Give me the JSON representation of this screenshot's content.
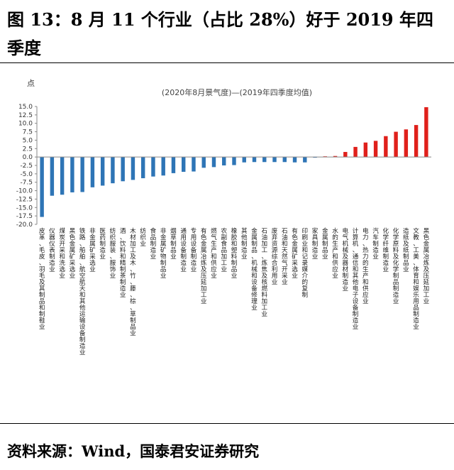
{
  "header": {
    "title": "图 13：8 月 11 个行业（占比 28%）好于 2019 年四季度"
  },
  "footer": {
    "source": "资料来源：Wind，国泰君安证券研究"
  },
  "chart_data": {
    "type": "bar",
    "title": "(2020年8月景气度)—(2019年四季度均值)",
    "ylabel": "点",
    "xlabel": "",
    "ylim": [
      -20,
      15
    ],
    "yticks": [
      15.0,
      12.5,
      10.0,
      7.5,
      5.0,
      2.5,
      0.0,
      -2.5,
      -5.0,
      -7.5,
      -10.0,
      -12.5,
      -15.0,
      -17.5,
      -20.0
    ],
    "grid": false,
    "colors": {
      "negative": "#2E75B6",
      "positive": "#E0201B"
    },
    "categories": [
      "皮革、毛皮、羽毛及其制品和制鞋业",
      "仪器仪表制造业",
      "煤炭开采和洗选业",
      "黑色金属矿采选业",
      "铁路、船舶、航空航天和其他运输设备制造业",
      "非金属矿采选业",
      "医药制造业",
      "纺织服装、服饰业",
      "酒、饮料和精制茶制造业",
      "木材加工及木、竹、藤、棕、草制品业",
      "纺织业",
      "食品制造业",
      "非金属矿物制品业",
      "烟草制品业",
      "通用设备制造业",
      "专用设备制造业",
      "有色金属冶炼及压延加工业",
      "燃气生产和供应业",
      "农副食品加工业",
      "橡胶和塑料制品业",
      "其他制造业",
      "金属制品、机械和设备修理业",
      "石油加工、炼焦及核燃料加工业",
      "废弃资源综合利用业",
      "石油和天然气开采业",
      "有色金属矿采选业",
      "印刷业和记录媒介的复制",
      "家具制造业",
      "金属制品业",
      "水的生产和供应业",
      "电气机械及器材制造业",
      "计算机、通信和其他电子设备制造业",
      "电力、热力的生产和供应业",
      "汽车制造业",
      "化学纤维制造业",
      "化学原料及化学制品制造业",
      "造纸及纸制品业",
      "文教、工美、体育和娱乐用品制造业",
      "黑色金属冶炼及压延加工业"
    ],
    "values": [
      -17.8,
      -11.5,
      -11.2,
      -10.5,
      -10.4,
      -9.0,
      -8.5,
      -7.8,
      -7.2,
      -6.8,
      -6.3,
      -5.8,
      -5.5,
      -4.8,
      -4.4,
      -4.3,
      -3.2,
      -3.0,
      -2.5,
      -2.4,
      -1.6,
      -1.5,
      -1.5,
      -1.5,
      -1.5,
      -1.6,
      -1.6,
      -0.2,
      0.2,
      0.3,
      1.5,
      3.0,
      4.3,
      4.8,
      6.2,
      7.5,
      8.2,
      9.5,
      14.8
    ]
  }
}
